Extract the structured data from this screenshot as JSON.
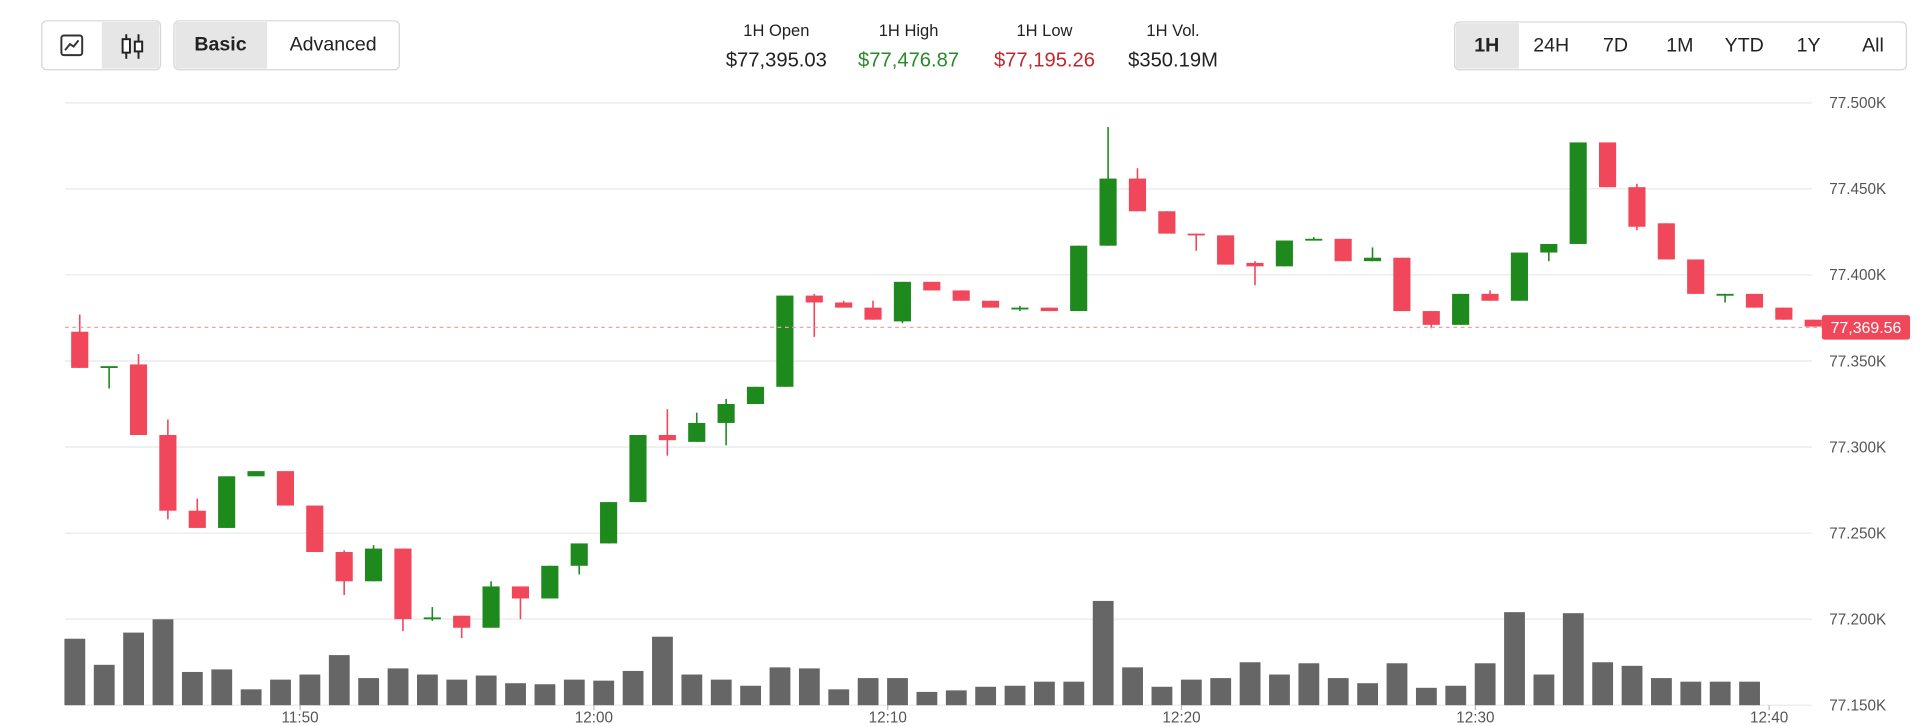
{
  "header": {
    "modes": [
      "Basic",
      "Advanced"
    ],
    "active_mode": 0,
    "stats": [
      {
        "label": "1H Open",
        "value": "$77,395.03",
        "color": "#222222"
      },
      {
        "label": "1H High",
        "value": "$77,476.87",
        "color": "#2a8a2a"
      },
      {
        "label": "1H Low",
        "value": "$77,195.26",
        "color": "#c0282d"
      },
      {
        "label": "1H Vol.",
        "value": "$350.19M",
        "color": "#222222"
      }
    ],
    "ranges": [
      "1H",
      "24H",
      "7D",
      "1M",
      "YTD",
      "1Y",
      "All"
    ],
    "active_range": 0
  },
  "chart_data": {
    "type": "candlestick",
    "x": [
      702.5,
      703.5,
      704.5,
      705.5,
      706.5,
      707.5,
      708.5,
      709.5,
      710.5,
      711.5,
      712.5,
      713.5,
      714.5,
      715.5,
      716.5,
      717.5,
      718.5,
      719.5,
      720.5,
      721.5,
      722.5,
      723.5,
      724.5,
      725.5,
      726.5,
      727.5,
      728.5,
      729.5,
      730.5,
      731.5,
      732.5,
      733.5,
      734.5,
      735.5,
      736.5,
      737.5,
      738.5,
      739.5,
      740.5,
      741.5,
      742.5,
      743.5,
      744.5,
      745.5,
      746.5,
      747.5,
      748.5,
      749.5,
      750.5,
      751.5,
      752.5,
      753.5,
      754.5,
      755.5,
      756.5,
      757.5,
      758.5,
      759.5,
      760.5,
      761.5
    ],
    "open": [
      77367,
      77346,
      77348,
      77307,
      77263,
      77253,
      77283,
      77286,
      77266,
      77239,
      77222,
      77241,
      77200,
      77202,
      77195,
      77219,
      77212,
      77231,
      77244,
      77268,
      77307,
      77303,
      77314,
      77325,
      77335,
      77388,
      77384,
      77381,
      77373,
      77396,
      77391,
      77385,
      77380,
      77381,
      77379,
      77417,
      77456,
      77437,
      77424,
      77423,
      77407,
      77405,
      77420,
      77421,
      77408,
      77410,
      77379,
      77371,
      77389,
      77385,
      77413,
      77418,
      77477,
      77451,
      77430,
      77409,
      77388,
      77389,
      77381,
      77374
    ],
    "high": [
      77377,
      77347,
      77354,
      77316,
      77270,
      77283,
      77286,
      77286,
      77266,
      77240,
      77243,
      77241,
      77207,
      77202,
      77222,
      77219,
      77231,
      77244,
      77268,
      77307,
      77322,
      77320,
      77328,
      77335,
      77388,
      77389,
      77385,
      77385,
      77396,
      77396,
      77391,
      77385,
      77382,
      77381,
      77417,
      77486,
      77462,
      77437,
      77424,
      77423,
      77408,
      77420,
      77422,
      77421,
      77416,
      77410,
      77379,
      77389,
      77391,
      77413,
      77418,
      77477,
      77477,
      77453,
      77430,
      77409,
      77389,
      77389,
      77381,
      77374
    ],
    "low": [
      77346,
      77334,
      77307,
      77258,
      77253,
      77253,
      77283,
      77266,
      77239,
      77214,
      77222,
      77193,
      77199,
      77189,
      77195,
      77200,
      77212,
      77226,
      77244,
      77268,
      77295,
      77303,
      77301,
      77325,
      77335,
      77364,
      77381,
      77374,
      77372,
      77391,
      77385,
      77381,
      77379,
      77379,
      77379,
      77417,
      77437,
      77424,
      77414,
      77406,
      77394,
      77405,
      77420,
      77408,
      77408,
      77379,
      77369,
      77371,
      77385,
      77385,
      77408,
      77418,
      77451,
      77426,
      77409,
      77389,
      77384,
      77381,
      77374,
      77370
    ],
    "close": [
      77346,
      77347,
      77307,
      77263,
      77253,
      77283,
      77286,
      77266,
      77239,
      77222,
      77241,
      77200,
      77201,
      77195,
      77219,
      77212,
      77231,
      77244,
      77268,
      77307,
      77304,
      77314,
      77325,
      77335,
      77388,
      77384,
      77381,
      77374,
      77396,
      77391,
      77385,
      77381,
      77381,
      77379,
      77417,
      77456,
      77437,
      77424,
      77423,
      77406,
      77405,
      77420,
      77421,
      77408,
      77410,
      77379,
      77371,
      77389,
      77385,
      77413,
      77418,
      77477,
      77451,
      77428,
      77409,
      77389,
      77389,
      77381,
      77374,
      77370
    ],
    "volume": [
      13.0,
      7.9,
      14.2,
      16.8,
      6.5,
      7.0,
      3.1,
      5.0,
      6.0,
      9.8,
      5.3,
      7.2,
      6.0,
      5.0,
      5.8,
      4.3,
      4.1,
      5.0,
      4.8,
      6.7,
      13.4,
      6.0,
      5.0,
      3.8,
      7.4,
      7.2,
      3.1,
      5.3,
      5.3,
      2.6,
      2.9,
      3.6,
      3.8,
      4.6,
      4.6,
      20.4,
      7.4,
      3.6,
      5.0,
      5.3,
      8.4,
      6.0,
      8.2,
      5.3,
      4.3,
      8.2,
      3.4,
      3.8,
      8.2,
      18.2,
      6.0,
      18.0,
      8.4,
      7.7,
      5.3,
      4.6,
      4.6,
      4.6,
      null,
      null
    ],
    "up_color": "#1e8a1e",
    "down_color": "#f0475a",
    "volume_color": "#666666",
    "xlim": [
      702,
      761.67
    ],
    "ylim": [
      77150,
      77500
    ],
    "volume_lim": [
      0,
      40
    ],
    "yticks": [
      {
        "value": 77500,
        "label": "77.500K"
      },
      {
        "value": 77450,
        "label": "77.450K"
      },
      {
        "value": 77400,
        "label": "77.400K"
      },
      {
        "value": 77350,
        "label": "77.350K"
      },
      {
        "value": 77300,
        "label": "77.300K"
      },
      {
        "value": 77250,
        "label": "77.250K"
      },
      {
        "value": 77200,
        "label": "77.200K"
      },
      {
        "value": 77150,
        "label": "77.150K"
      }
    ],
    "xticks": [
      {
        "value": 710,
        "label": "11:50"
      },
      {
        "value": 720,
        "label": "12:00"
      },
      {
        "value": 730,
        "label": "12:10"
      },
      {
        "value": 740,
        "label": "12:20"
      },
      {
        "value": 750,
        "label": "12:30"
      },
      {
        "value": 760,
        "label": "12:40"
      }
    ],
    "grid": true,
    "last_price": {
      "value": 77369.56,
      "label": "77,369.56"
    }
  }
}
